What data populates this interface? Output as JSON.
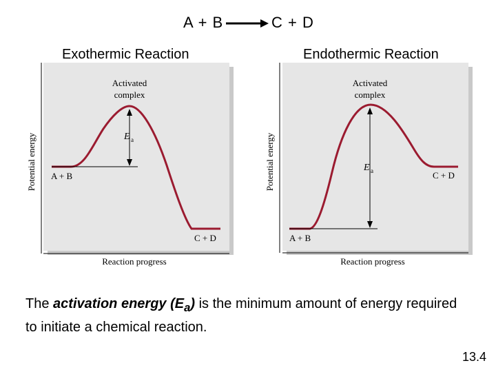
{
  "equation": {
    "left": "A + B",
    "right": "C + D"
  },
  "panels": [
    {
      "caption": "Exothermic Reaction",
      "top_label_line1": "Activated",
      "top_label_line2": "complex",
      "ea_main": "E",
      "ea_sub": "a",
      "reactant_label": "A + B",
      "product_label": "C + D",
      "xlabel": "Reaction progress",
      "ylabel": "Potential energy"
    },
    {
      "caption": "Endothermic Reaction",
      "top_label_line1": "Activated",
      "top_label_line2": "complex",
      "ea_main": "E",
      "ea_sub": "a",
      "reactant_label": "A + B",
      "product_label": "C + D",
      "xlabel": "Reaction progress",
      "ylabel": "Potential energy"
    }
  ],
  "description": {
    "before": "The ",
    "term": "activation energy (E",
    "term_sub": "a",
    "term_close": ")",
    "after": " is the minimum amount of energy required to initiate a chemical reaction."
  },
  "slide_number": "13.4",
  "colors": {
    "curve": "#9b1b30",
    "panel_bg": "#e6e6e6",
    "panel_shadow": "#c9c9c9"
  }
}
